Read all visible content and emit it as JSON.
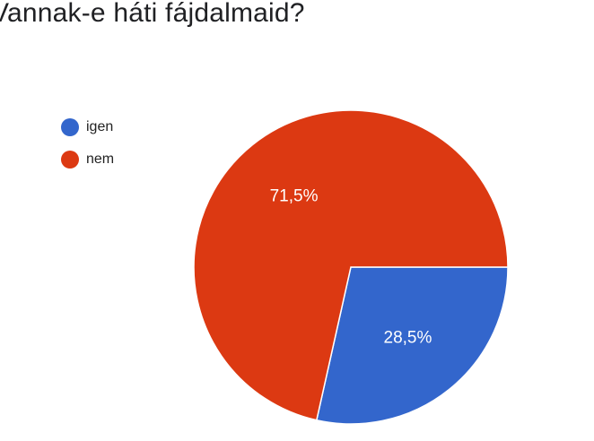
{
  "title": "Vannak-e háti fájdalmaid?",
  "chart_data": {
    "type": "pie",
    "title": "Vannak-e háti fájdalmaid?",
    "legend_position": "top-left",
    "slices": [
      {
        "label": "igen",
        "value": 28.5,
        "display": "28,5%",
        "color": "#3366cc"
      },
      {
        "label": "nem",
        "value": 71.5,
        "display": "71,5%",
        "color": "#dc3912"
      }
    ]
  }
}
